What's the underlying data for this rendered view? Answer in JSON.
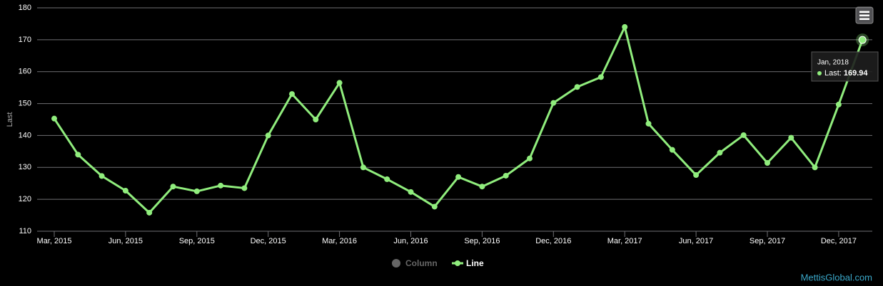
{
  "chart_data": {
    "type": "line",
    "y_label": "Last",
    "categories": [
      "Mar, 2015",
      null,
      null,
      "Jun, 2015",
      null,
      null,
      "Sep, 2015",
      null,
      null,
      "Dec, 2015",
      null,
      null,
      "Mar, 2016",
      null,
      null,
      "Jun, 2016",
      null,
      null,
      "Sep, 2016",
      null,
      null,
      "Dec, 2016",
      null,
      null,
      "Mar, 2017",
      null,
      null,
      "Jun, 2017",
      null,
      null,
      "Sep, 2017",
      null,
      null,
      "Dec, 2017",
      null
    ],
    "series": [
      {
        "name": "Column",
        "color": "#666666",
        "visible": false
      },
      {
        "name": "Line",
        "color": "#90ed7d",
        "visible": true,
        "values": [
          145.3,
          134,
          127.3,
          122.7,
          115.8,
          124,
          122.5,
          124.3,
          123.5,
          140,
          153,
          145,
          156.5,
          130,
          126.3,
          122.3,
          117.7,
          127,
          124,
          127.4,
          132.8,
          150.2,
          155.2,
          158.3,
          174,
          143.7,
          135.5,
          127.6,
          134.6,
          140.1,
          131.4,
          139.3,
          130,
          149.7,
          169.94
        ]
      }
    ],
    "ylim": [
      110,
      180
    ],
    "yticks": [
      110,
      120,
      130,
      140,
      150,
      160,
      170,
      180
    ],
    "grid": true,
    "tooltip": {
      "label": "Jan, 2018",
      "series_label": "Last:",
      "value": 169.94
    },
    "credits": "MettisGlobal.com"
  }
}
